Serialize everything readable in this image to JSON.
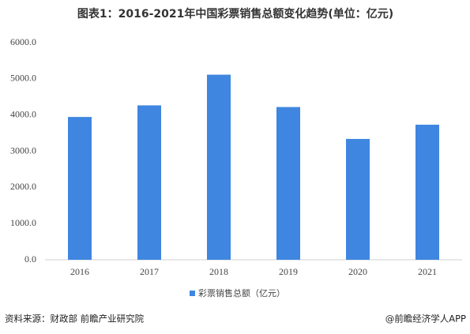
{
  "chart_data": {
    "type": "bar",
    "title": "图表1：2016-2021年中国彩票销售总额变化趋势(单位：亿元)",
    "categories": [
      "2016",
      "2017",
      "2018",
      "2019",
      "2020",
      "2021"
    ],
    "series": [
      {
        "name": "彩票销售总额（亿元）",
        "color": "#3f86e0",
        "values": [
          3946.4,
          4266.7,
          5114.7,
          4220.5,
          3339.5,
          3732.9
        ]
      }
    ],
    "ylim": [
      0,
      6000
    ],
    "yticks": [
      {
        "value": 0,
        "label": "0.0"
      },
      {
        "value": 1000,
        "label": "1000.0"
      },
      {
        "value": 2000,
        "label": "2000.0"
      },
      {
        "value": 3000,
        "label": "3000.0"
      },
      {
        "value": 4000,
        "label": "4000.0"
      },
      {
        "value": 5000,
        "label": "5000.0"
      },
      {
        "value": 6000,
        "label": "6000.0"
      }
    ],
    "grid": false,
    "legend": "bottom",
    "source": "资料来源：财政部 前瞻产业研究院",
    "credit": "@前瞻经济学人APP"
  }
}
